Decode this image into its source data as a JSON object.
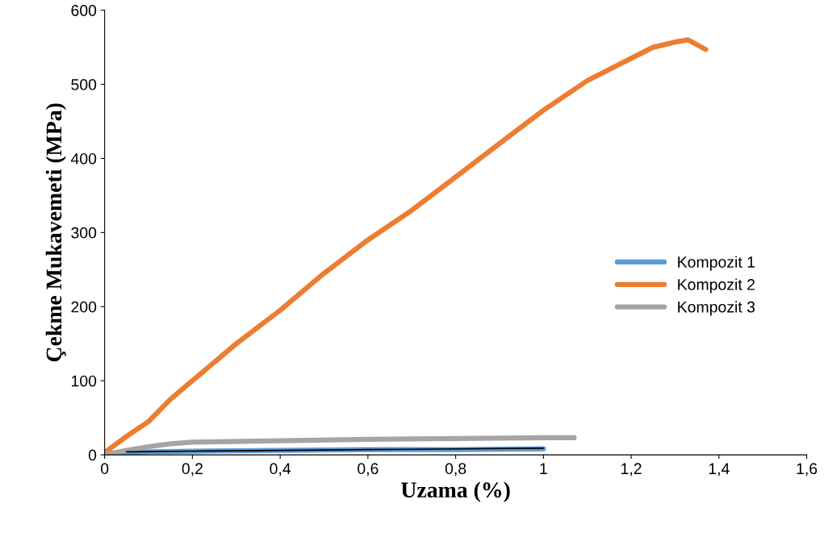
{
  "chart_data": {
    "type": "line",
    "xlabel": "Uzama (%)",
    "ylabel": "Çekme Mukavemeti (MPa)",
    "xlim": [
      0,
      1.6
    ],
    "xticks": [
      {
        "value": 0,
        "label": "0"
      },
      {
        "value": 0.2,
        "label": "0,2"
      },
      {
        "value": 0.4,
        "label": "0,4"
      },
      {
        "value": 0.6,
        "label": "0,6"
      },
      {
        "value": 0.8,
        "label": "0,8"
      },
      {
        "value": 1,
        "label": "1"
      },
      {
        "value": 1.2,
        "label": "1,2"
      },
      {
        "value": 1.4,
        "label": "1,4"
      },
      {
        "value": 1.6,
        "label": "1,6"
      }
    ],
    "ylim": [
      0,
      600
    ],
    "yticks": [
      0,
      100,
      200,
      300,
      400,
      500,
      600
    ],
    "grid": false,
    "legend": "right",
    "marker": "none",
    "line_style": "solid",
    "series": [
      {
        "name": "Kompozit 1",
        "color": "#5b9bd5",
        "x": [
          0,
          0.05,
          0.1,
          0.2,
          0.4,
          0.6,
          0.8,
          1.0
        ],
        "values": [
          2,
          3,
          4,
          5,
          6,
          7,
          7,
          8
        ]
      },
      {
        "name": "Kompozit 2",
        "color": "#ed7d31",
        "x": [
          0,
          0.05,
          0.1,
          0.15,
          0.2,
          0.3,
          0.4,
          0.5,
          0.6,
          0.7,
          0.8,
          0.9,
          1.0,
          1.1,
          1.2,
          1.25,
          1.3,
          1.33,
          1.37
        ],
        "values": [
          3,
          25,
          45,
          75,
          100,
          150,
          195,
          245,
          290,
          330,
          375,
          420,
          465,
          505,
          535,
          550,
          557,
          560,
          547
        ]
      },
      {
        "name": "Kompozit 3",
        "color": "#a5a5a5",
        "x": [
          0,
          0.05,
          0.1,
          0.15,
          0.2,
          0.4,
          0.6,
          0.8,
          1.0,
          1.07
        ],
        "values": [
          0,
          6,
          11,
          15,
          17,
          19,
          21,
          22,
          23,
          23
        ]
      },
      {
        "color": "#000000",
        "x": [
          0.05,
          0.2,
          0.4,
          0.6,
          0.8,
          1.0
        ],
        "values": [
          4,
          5,
          6,
          7,
          8,
          9
        ]
      }
    ]
  }
}
